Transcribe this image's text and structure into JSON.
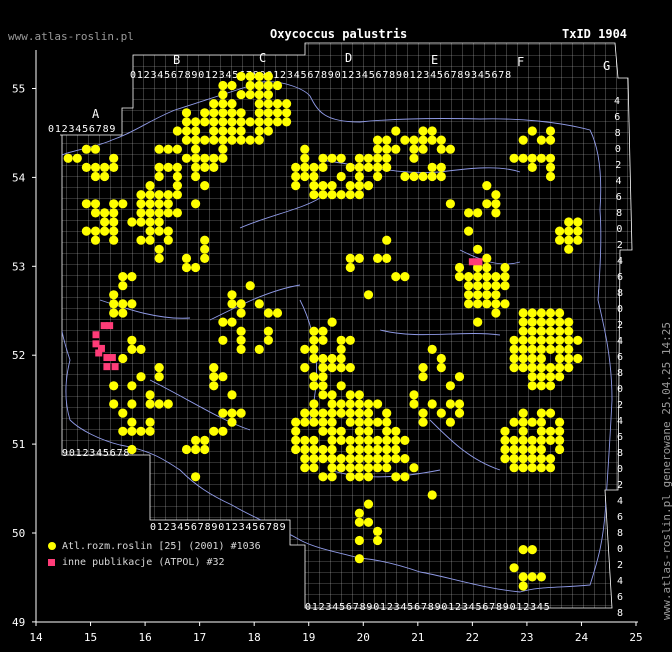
{
  "site": "www.atlas-roslin.pl",
  "title": "Oxycoccus palustris",
  "taxon_id": "TxID 1904",
  "generated": "www.atlas-roslin.pl generowane 25.04.25 14:25",
  "legend": [
    {
      "label": "Atl.rozm.roslin [25] (2001) #1036",
      "color": "#ffff00"
    },
    {
      "label": "inne publikacje (ATPOL) #32",
      "color": "#ff3c78"
    }
  ],
  "colors": {
    "atlas": "#ffff00",
    "other": "#ff3c78",
    "grid": "#b4b4b4",
    "border": "#8f9ae6"
  },
  "chart_data": {
    "type": "scatter",
    "x_ticks": [
      "14",
      "15",
      "16",
      "17",
      "18",
      "19",
      "20",
      "21",
      "22",
      "23",
      "24",
      "25"
    ],
    "y_ticks": [
      "55",
      "54",
      "53",
      "52",
      "51",
      "50",
      "49"
    ],
    "xlim": [
      14,
      25
    ],
    "ylim": [
      49,
      55.6
    ],
    "grid_letters": [
      "A",
      "B",
      "C",
      "D",
      "E",
      "F",
      "G"
    ],
    "atlas_clusters": [
      {
        "lon": 17.9,
        "lat": 54.65,
        "rx": 0.7,
        "ry": 0.4,
        "n": 95
      },
      {
        "lon": 17.1,
        "lat": 54.3,
        "rx": 0.55,
        "ry": 0.35,
        "n": 45
      },
      {
        "lon": 16.6,
        "lat": 53.9,
        "rx": 0.55,
        "ry": 0.35,
        "n": 35
      },
      {
        "lon": 16.2,
        "lat": 53.4,
        "rx": 0.4,
        "ry": 0.4,
        "n": 40
      },
      {
        "lon": 15.2,
        "lat": 53.5,
        "rx": 0.35,
        "ry": 0.5,
        "n": 22
      },
      {
        "lon": 15.0,
        "lat": 54.0,
        "rx": 0.45,
        "ry": 0.25,
        "n": 15
      },
      {
        "lon": 19.4,
        "lat": 53.9,
        "rx": 0.9,
        "ry": 0.3,
        "n": 45
      },
      {
        "lon": 20.9,
        "lat": 54.1,
        "rx": 0.8,
        "ry": 0.3,
        "n": 40
      },
      {
        "lon": 23.2,
        "lat": 54.1,
        "rx": 0.45,
        "ry": 0.3,
        "n": 20
      },
      {
        "lon": 22.0,
        "lat": 53.6,
        "rx": 0.5,
        "ry": 0.3,
        "n": 10
      },
      {
        "lon": 23.8,
        "lat": 53.25,
        "rx": 0.3,
        "ry": 0.25,
        "n": 15
      },
      {
        "lon": 22.2,
        "lat": 52.7,
        "rx": 0.4,
        "ry": 0.45,
        "n": 60
      },
      {
        "lon": 23.3,
        "lat": 52.0,
        "rx": 0.6,
        "ry": 0.45,
        "n": 130
      },
      {
        "lon": 23.1,
        "lat": 51.0,
        "rx": 0.6,
        "ry": 0.35,
        "n": 75
      },
      {
        "lon": 19.7,
        "lat": 51.0,
        "rx": 1.0,
        "ry": 0.5,
        "n": 150
      },
      {
        "lon": 19.4,
        "lat": 51.9,
        "rx": 0.5,
        "ry": 0.35,
        "n": 35
      },
      {
        "lon": 20.5,
        "lat": 50.8,
        "rx": 0.4,
        "ry": 0.35,
        "n": 25
      },
      {
        "lon": 21.4,
        "lat": 51.5,
        "rx": 0.5,
        "ry": 0.5,
        "n": 20
      },
      {
        "lon": 15.9,
        "lat": 51.5,
        "rx": 0.5,
        "ry": 0.6,
        "n": 30
      },
      {
        "lon": 17.9,
        "lat": 52.2,
        "rx": 0.6,
        "ry": 0.5,
        "n": 18
      },
      {
        "lon": 17.4,
        "lat": 51.5,
        "rx": 0.4,
        "ry": 0.4,
        "n": 12
      },
      {
        "lon": 17.0,
        "lat": 50.9,
        "rx": 0.3,
        "ry": 0.4,
        "n": 8
      },
      {
        "lon": 15.5,
        "lat": 52.6,
        "rx": 0.3,
        "ry": 0.25,
        "n": 12
      },
      {
        "lon": 16.9,
        "lat": 53.0,
        "rx": 0.2,
        "ry": 0.2,
        "n": 6
      },
      {
        "lon": 20.3,
        "lat": 52.9,
        "rx": 0.6,
        "ry": 0.35,
        "n": 10
      },
      {
        "lon": 20.1,
        "lat": 50.0,
        "rx": 0.3,
        "ry": 0.35,
        "n": 8
      },
      {
        "lon": 22.9,
        "lat": 49.6,
        "rx": 0.3,
        "ry": 0.3,
        "n": 6
      }
    ],
    "atlas_points": [
      [
        20.1,
        50.25
      ],
      [
        21.2,
        50.4
      ],
      [
        22.8,
        50.65
      ],
      [
        23.3,
        49.45
      ]
    ],
    "other_points": [
      [
        15.25,
        52.25
      ],
      [
        15.35,
        52.25
      ],
      [
        15.1,
        52.15
      ],
      [
        15.1,
        52.05
      ],
      [
        15.2,
        52.0
      ],
      [
        15.3,
        51.9
      ],
      [
        15.4,
        51.9
      ],
      [
        15.3,
        51.8
      ],
      [
        15.45,
        51.8
      ],
      [
        15.15,
        51.95
      ],
      [
        22.0,
        52.95
      ],
      [
        22.12,
        52.95
      ]
    ]
  }
}
